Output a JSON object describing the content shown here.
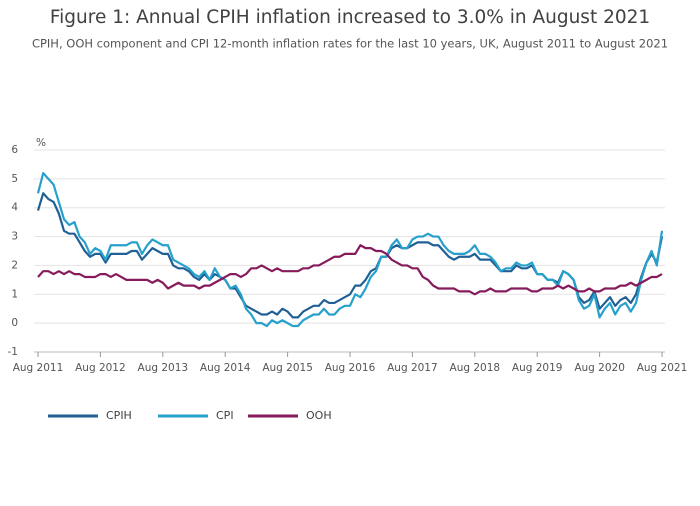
{
  "chart_data": {
    "type": "line",
    "title": "Figure 1: Annual CPIH inflation increased to 3.0% in August 2021",
    "subtitle": "CPIH, OOH component and CPI 12-month inflation rates for the last 10 years, UK, August 2011 to August 2021",
    "y_axis_label": "%",
    "categories": [
      "Aug 2011",
      null,
      null,
      null,
      null,
      null,
      null,
      null,
      null,
      null,
      null,
      null,
      "Aug 2012",
      null,
      null,
      null,
      null,
      null,
      null,
      null,
      null,
      null,
      null,
      null,
      "Aug 2013",
      null,
      null,
      null,
      null,
      null,
      null,
      null,
      null,
      null,
      null,
      null,
      "Aug 2014",
      null,
      null,
      null,
      null,
      null,
      null,
      null,
      null,
      null,
      null,
      null,
      "Aug 2015",
      null,
      null,
      null,
      null,
      null,
      null,
      null,
      null,
      null,
      null,
      null,
      "Aug 2016",
      null,
      null,
      null,
      null,
      null,
      null,
      null,
      null,
      null,
      null,
      null,
      "Aug 2017",
      null,
      null,
      null,
      null,
      null,
      null,
      null,
      null,
      null,
      null,
      null,
      "Aug 2018",
      null,
      null,
      null,
      null,
      null,
      null,
      null,
      null,
      null,
      null,
      null,
      "Aug 2019",
      null,
      null,
      null,
      null,
      null,
      null,
      null,
      null,
      null,
      null,
      null,
      "Aug 2020",
      null,
      null,
      null,
      null,
      null,
      null,
      null,
      null,
      null,
      null,
      null,
      "Aug 2021"
    ],
    "series": [
      {
        "name": "CPIH",
        "color": "#206095",
        "values": [
          3.9,
          4.5,
          4.3,
          4.2,
          3.8,
          3.2,
          3.1,
          3.1,
          2.8,
          2.5,
          2.3,
          2.4,
          2.4,
          2.1,
          2.4,
          2.4,
          2.4,
          2.4,
          2.5,
          2.5,
          2.2,
          2.4,
          2.6,
          2.5,
          2.4,
          2.4,
          2.0,
          1.9,
          1.9,
          1.8,
          1.6,
          1.5,
          1.7,
          1.5,
          1.7,
          1.6,
          1.5,
          1.2,
          1.2,
          0.9,
          0.6,
          0.5,
          0.4,
          0.3,
          0.3,
          0.4,
          0.3,
          0.5,
          0.4,
          0.2,
          0.2,
          0.4,
          0.5,
          0.6,
          0.6,
          0.8,
          0.7,
          0.7,
          0.8,
          0.9,
          1.0,
          1.3,
          1.3,
          1.5,
          1.8,
          1.9,
          2.3,
          2.3,
          2.6,
          2.7,
          2.6,
          2.6,
          2.7,
          2.8,
          2.8,
          2.8,
          2.7,
          2.7,
          2.5,
          2.3,
          2.2,
          2.3,
          2.3,
          2.3,
          2.4,
          2.2,
          2.2,
          2.2,
          2.0,
          1.8,
          1.8,
          1.8,
          2.0,
          1.9,
          1.9,
          2.0,
          1.7,
          1.7,
          1.5,
          1.5,
          1.4,
          1.8,
          1.7,
          1.5,
          0.9,
          0.7,
          0.8,
          1.1,
          0.5,
          0.7,
          0.9,
          0.6,
          0.8,
          0.9,
          0.7,
          1.0,
          1.6,
          2.1,
          2.4,
          2.1,
          3.0
        ]
      },
      {
        "name": "CPI",
        "color": "#27a0cc",
        "values": [
          4.5,
          5.2,
          5.0,
          4.8,
          4.2,
          3.6,
          3.4,
          3.5,
          3.0,
          2.8,
          2.4,
          2.6,
          2.5,
          2.2,
          2.7,
          2.7,
          2.7,
          2.7,
          2.8,
          2.8,
          2.4,
          2.7,
          2.9,
          2.8,
          2.7,
          2.7,
          2.2,
          2.1,
          2.0,
          1.9,
          1.7,
          1.6,
          1.8,
          1.5,
          1.9,
          1.6,
          1.5,
          1.2,
          1.3,
          1.0,
          0.5,
          0.3,
          0.0,
          0.0,
          -0.1,
          0.1,
          0.0,
          0.1,
          0.0,
          -0.1,
          -0.1,
          0.1,
          0.2,
          0.3,
          0.3,
          0.5,
          0.3,
          0.3,
          0.5,
          0.6,
          0.6,
          1.0,
          0.9,
          1.2,
          1.6,
          1.8,
          2.3,
          2.3,
          2.7,
          2.9,
          2.6,
          2.6,
          2.9,
          3.0,
          3.0,
          3.1,
          3.0,
          3.0,
          2.7,
          2.5,
          2.4,
          2.4,
          2.4,
          2.5,
          2.7,
          2.4,
          2.4,
          2.3,
          2.1,
          1.8,
          1.9,
          1.9,
          2.1,
          2.0,
          2.0,
          2.1,
          1.7,
          1.7,
          1.5,
          1.5,
          1.3,
          1.8,
          1.7,
          1.5,
          0.8,
          0.5,
          0.6,
          1.0,
          0.2,
          0.5,
          0.7,
          0.3,
          0.6,
          0.7,
          0.4,
          0.7,
          1.5,
          2.1,
          2.5,
          2.0,
          3.2
        ]
      },
      {
        "name": "OOH",
        "color": "#871a5b",
        "values": [
          1.6,
          1.8,
          1.8,
          1.7,
          1.8,
          1.7,
          1.8,
          1.7,
          1.7,
          1.6,
          1.6,
          1.6,
          1.7,
          1.7,
          1.6,
          1.7,
          1.6,
          1.5,
          1.5,
          1.5,
          1.5,
          1.5,
          1.4,
          1.5,
          1.4,
          1.2,
          1.3,
          1.4,
          1.3,
          1.3,
          1.3,
          1.2,
          1.3,
          1.3,
          1.4,
          1.5,
          1.6,
          1.7,
          1.7,
          1.6,
          1.7,
          1.9,
          1.9,
          2.0,
          1.9,
          1.8,
          1.9,
          1.8,
          1.8,
          1.8,
          1.8,
          1.9,
          1.9,
          2.0,
          2.0,
          2.1,
          2.2,
          2.3,
          2.3,
          2.4,
          2.4,
          2.4,
          2.7,
          2.6,
          2.6,
          2.5,
          2.5,
          2.4,
          2.2,
          2.1,
          2.0,
          2.0,
          1.9,
          1.9,
          1.6,
          1.5,
          1.3,
          1.2,
          1.2,
          1.2,
          1.2,
          1.1,
          1.1,
          1.1,
          1.0,
          1.1,
          1.1,
          1.2,
          1.1,
          1.1,
          1.1,
          1.2,
          1.2,
          1.2,
          1.2,
          1.1,
          1.1,
          1.2,
          1.2,
          1.2,
          1.3,
          1.2,
          1.3,
          1.2,
          1.1,
          1.1,
          1.2,
          1.1,
          1.1,
          1.2,
          1.2,
          1.2,
          1.3,
          1.3,
          1.4,
          1.3,
          1.4,
          1.5,
          1.6,
          1.6,
          1.7
        ]
      }
    ],
    "ylim": [
      -1,
      6
    ],
    "yticks": [
      -1,
      0,
      1,
      2,
      3,
      4,
      5,
      6
    ],
    "grid": true,
    "legend": "bottom"
  }
}
